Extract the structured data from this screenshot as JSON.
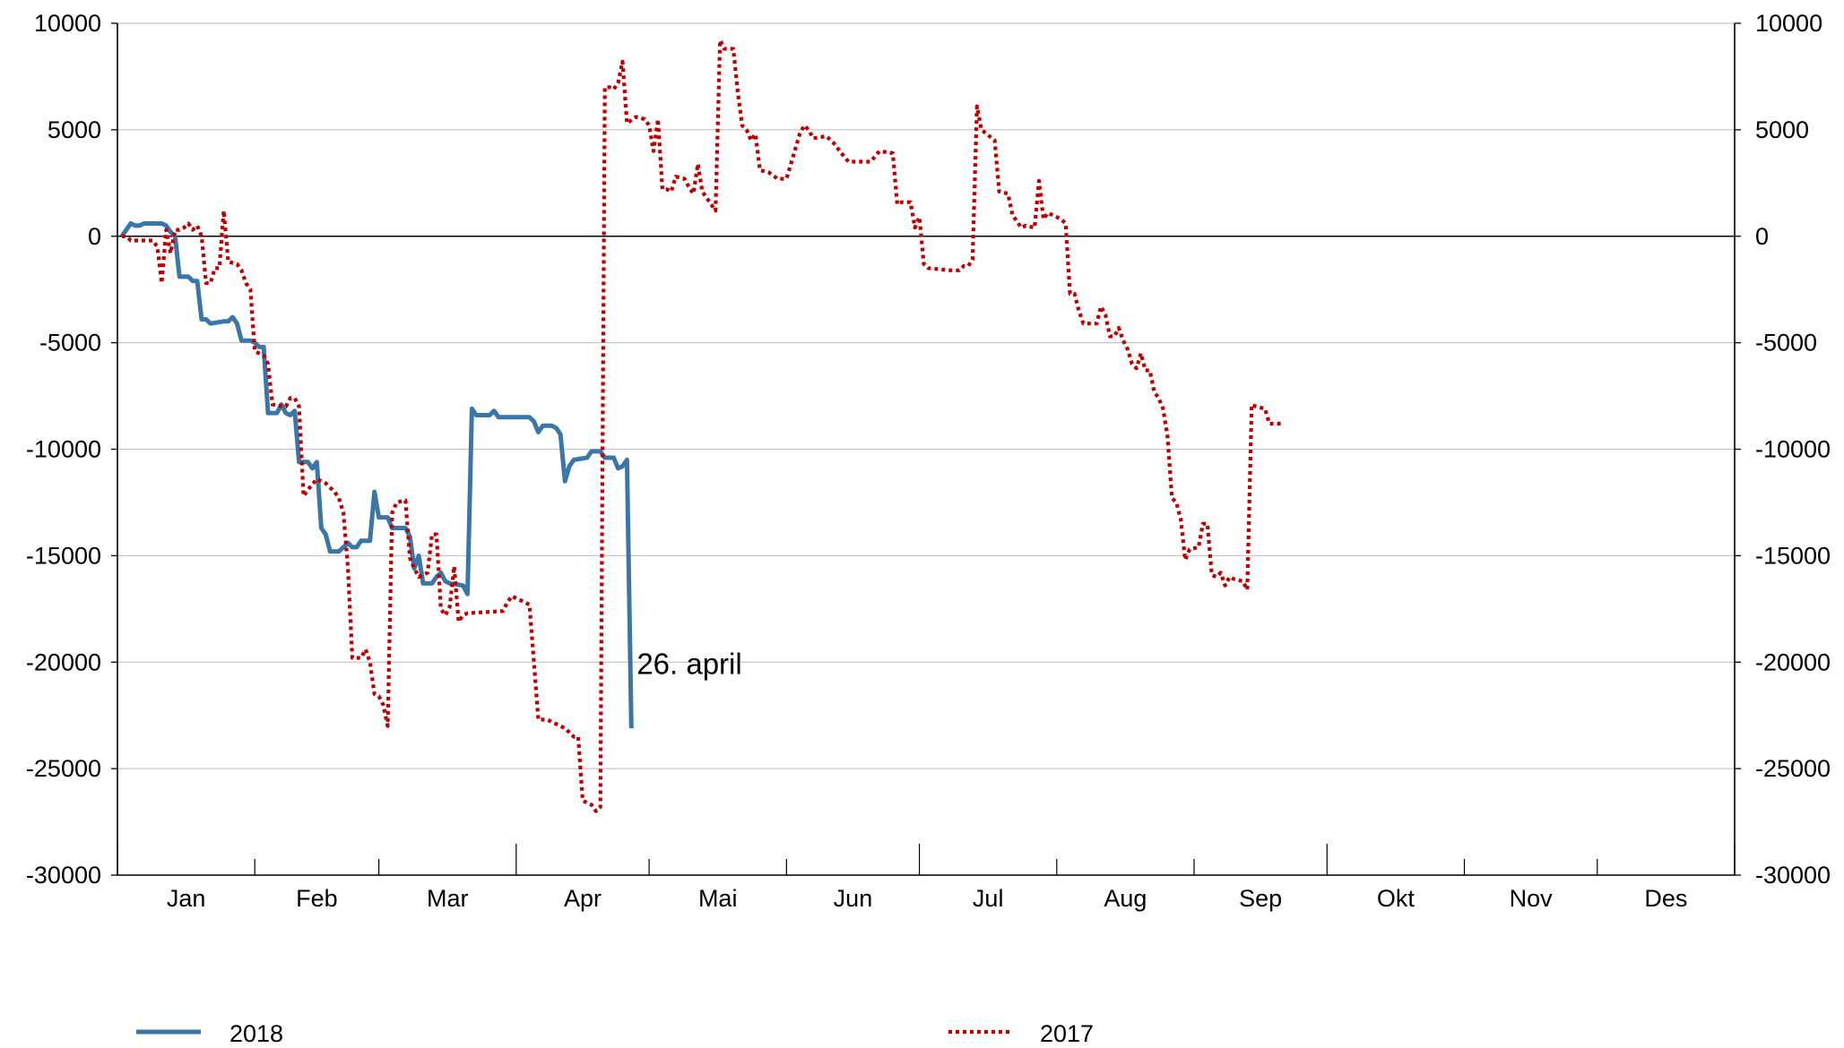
{
  "chart_data": {
    "type": "line",
    "ylim": [
      -30000,
      10000
    ],
    "yticks": [
      10000,
      5000,
      0,
      -5000,
      -10000,
      -15000,
      -20000,
      -25000,
      -30000
    ],
    "ytick_labels": [
      "10000",
      "5000",
      "0",
      "-5000",
      "-10000",
      "-15000",
      "-20000",
      "-25000",
      "-30000"
    ],
    "months": [
      "Jan",
      "Feb",
      "Mar",
      "Apr",
      "Mai",
      "Jun",
      "Jul",
      "Aug",
      "Sep",
      "Okt",
      "Nov",
      "Des"
    ],
    "x_unit": "day of year",
    "grid": true,
    "legend_position": "bottom",
    "annotation": {
      "text": "26. april",
      "series": "2018",
      "day": 116
    },
    "series": [
      {
        "name": "2018",
        "color": "#3a76a8",
        "style": "solid",
        "points": [
          [
            1,
            0
          ],
          [
            2,
            300
          ],
          [
            3,
            600
          ],
          [
            4,
            500
          ],
          [
            5,
            500
          ],
          [
            6,
            600
          ],
          [
            8,
            600
          ],
          [
            10,
            600
          ],
          [
            11,
            500
          ],
          [
            12,
            200
          ],
          [
            13,
            0
          ],
          [
            14,
            -1900
          ],
          [
            15,
            -1900
          ],
          [
            16,
            -1900
          ],
          [
            17,
            -2100
          ],
          [
            18,
            -2100
          ],
          [
            19,
            -3900
          ],
          [
            20,
            -3900
          ],
          [
            21,
            -4100
          ],
          [
            24,
            -4000
          ],
          [
            25,
            -4000
          ],
          [
            26,
            -3800
          ],
          [
            27,
            -4100
          ],
          [
            28,
            -4900
          ],
          [
            30,
            -4900
          ],
          [
            31,
            -5000
          ],
          [
            32,
            -5200
          ],
          [
            33,
            -5200
          ],
          [
            34,
            -8300
          ],
          [
            36,
            -8300
          ],
          [
            37,
            -7900
          ],
          [
            38,
            -8300
          ],
          [
            39,
            -8400
          ],
          [
            40,
            -8200
          ],
          [
            41,
            -10600
          ],
          [
            43,
            -10600
          ],
          [
            44,
            -10900
          ],
          [
            45,
            -10600
          ],
          [
            46,
            -13700
          ],
          [
            47,
            -14000
          ],
          [
            48,
            -14800
          ],
          [
            50,
            -14800
          ],
          [
            51,
            -14600
          ],
          [
            52,
            -14400
          ],
          [
            53,
            -14600
          ],
          [
            54,
            -14600
          ],
          [
            55,
            -14300
          ],
          [
            56,
            -14300
          ],
          [
            57,
            -14300
          ],
          [
            58,
            -12000
          ],
          [
            59,
            -13200
          ],
          [
            61,
            -13200
          ],
          [
            62,
            -13700
          ],
          [
            65,
            -13700
          ],
          [
            66,
            -14100
          ],
          [
            67,
            -15600
          ],
          [
            68,
            -15000
          ],
          [
            69,
            -16300
          ],
          [
            71,
            -16300
          ],
          [
            72,
            -16000
          ],
          [
            73,
            -15800
          ],
          [
            74,
            -16200
          ],
          [
            75,
            -16300
          ],
          [
            78,
            -16400
          ],
          [
            79,
            -16800
          ],
          [
            80,
            -8100
          ],
          [
            81,
            -8400
          ],
          [
            84,
            -8400
          ],
          [
            85,
            -8200
          ],
          [
            86,
            -8500
          ],
          [
            93,
            -8500
          ],
          [
            94,
            -8700
          ],
          [
            95,
            -9200
          ],
          [
            96,
            -8900
          ],
          [
            98,
            -8900
          ],
          [
            99,
            -9000
          ],
          [
            100,
            -9300
          ],
          [
            101,
            -11500
          ],
          [
            102,
            -10800
          ],
          [
            103,
            -10500
          ],
          [
            106,
            -10400
          ],
          [
            107,
            -10100
          ],
          [
            109,
            -10100
          ],
          [
            110,
            -10400
          ],
          [
            112,
            -10400
          ],
          [
            113,
            -10900
          ],
          [
            114,
            -10800
          ],
          [
            115,
            -10500
          ],
          [
            116,
            -23100
          ]
        ]
      },
      {
        "name": "2017",
        "color": "#c00000",
        "style": "dotted",
        "points": [
          [
            1,
            0
          ],
          [
            2,
            0
          ],
          [
            3,
            -200
          ],
          [
            8,
            -200
          ],
          [
            9,
            -500
          ],
          [
            10,
            -2200
          ],
          [
            11,
            300
          ],
          [
            12,
            -800
          ],
          [
            13,
            300
          ],
          [
            14,
            300
          ],
          [
            15,
            400
          ],
          [
            16,
            600
          ],
          [
            17,
            300
          ],
          [
            18,
            500
          ],
          [
            19,
            0
          ],
          [
            20,
            -2200
          ],
          [
            21,
            -2200
          ],
          [
            22,
            -1500
          ],
          [
            23,
            -1500
          ],
          [
            24,
            1200
          ],
          [
            25,
            -1200
          ],
          [
            27,
            -1300
          ],
          [
            28,
            -1600
          ],
          [
            29,
            -2200
          ],
          [
            30,
            -2500
          ],
          [
            31,
            -5400
          ],
          [
            33,
            -5600
          ],
          [
            34,
            -6000
          ],
          [
            35,
            -7900
          ],
          [
            38,
            -8000
          ],
          [
            39,
            -7600
          ],
          [
            40,
            -7600
          ],
          [
            41,
            -8000
          ],
          [
            42,
            -12200
          ],
          [
            43,
            -11900
          ],
          [
            45,
            -11400
          ],
          [
            47,
            -11600
          ],
          [
            48,
            -11800
          ],
          [
            49,
            -12000
          ],
          [
            50,
            -12300
          ],
          [
            51,
            -13000
          ],
          [
            52,
            -15500
          ],
          [
            53,
            -19800
          ],
          [
            55,
            -19800
          ],
          [
            56,
            -19400
          ],
          [
            57,
            -20000
          ],
          [
            58,
            -21500
          ],
          [
            59,
            -21600
          ],
          [
            60,
            -22000
          ],
          [
            61,
            -23000
          ],
          [
            62,
            -13000
          ],
          [
            63,
            -12500
          ],
          [
            65,
            -12400
          ],
          [
            66,
            -15100
          ],
          [
            67,
            -15600
          ],
          [
            68,
            -16000
          ],
          [
            70,
            -15800
          ],
          [
            71,
            -14000
          ],
          [
            72,
            -14000
          ],
          [
            73,
            -17500
          ],
          [
            74,
            -17800
          ],
          [
            75,
            -17400
          ],
          [
            76,
            -15500
          ],
          [
            77,
            -18100
          ],
          [
            78,
            -17800
          ],
          [
            79,
            -17700
          ],
          [
            87,
            -17600
          ],
          [
            88,
            -17200
          ],
          [
            89,
            -16900
          ],
          [
            91,
            -17100
          ],
          [
            93,
            -17300
          ],
          [
            94,
            -20000
          ],
          [
            95,
            -22700
          ],
          [
            97,
            -22700
          ],
          [
            99,
            -22900
          ],
          [
            101,
            -23100
          ],
          [
            103,
            -23500
          ],
          [
            104,
            -23500
          ],
          [
            105,
            -26500
          ],
          [
            107,
            -26700
          ],
          [
            108,
            -27000
          ],
          [
            109,
            -26800
          ],
          [
            110,
            7000
          ],
          [
            111,
            7000
          ],
          [
            112,
            6900
          ],
          [
            113,
            7200
          ],
          [
            114,
            8200
          ],
          [
            115,
            5300
          ],
          [
            117,
            5600
          ],
          [
            119,
            5500
          ],
          [
            120,
            5200
          ],
          [
            121,
            4000
          ],
          [
            122,
            5500
          ],
          [
            123,
            2200
          ],
          [
            124,
            2200
          ],
          [
            125,
            2100
          ],
          [
            126,
            2800
          ],
          [
            128,
            2700
          ],
          [
            129,
            2300
          ],
          [
            130,
            2000
          ],
          [
            131,
            3400
          ],
          [
            132,
            2100
          ],
          [
            133,
            1800
          ],
          [
            134,
            1500
          ],
          [
            135,
            1200
          ],
          [
            136,
            9200
          ],
          [
            137,
            8800
          ],
          [
            139,
            8800
          ],
          [
            140,
            6800
          ],
          [
            141,
            5200
          ],
          [
            142,
            5000
          ],
          [
            143,
            4500
          ],
          [
            144,
            4800
          ],
          [
            145,
            3100
          ],
          [
            147,
            3000
          ],
          [
            149,
            2700
          ],
          [
            151,
            2700
          ],
          [
            152,
            3400
          ],
          [
            153,
            4100
          ],
          [
            154,
            4800
          ],
          [
            155,
            5200
          ],
          [
            156,
            5000
          ],
          [
            157,
            4600
          ],
          [
            160,
            4700
          ],
          [
            162,
            4300
          ],
          [
            163,
            4000
          ],
          [
            165,
            3500
          ],
          [
            170,
            3500
          ],
          [
            172,
            4000
          ],
          [
            175,
            3900
          ],
          [
            176,
            1500
          ],
          [
            177,
            1600
          ],
          [
            179,
            1600
          ],
          [
            180,
            400
          ],
          [
            181,
            900
          ],
          [
            182,
            -1300
          ],
          [
            183,
            -1500
          ],
          [
            188,
            -1600
          ],
          [
            190,
            -1600
          ],
          [
            191,
            -1400
          ],
          [
            192,
            -1400
          ],
          [
            193,
            -1100
          ],
          [
            194,
            6100
          ],
          [
            195,
            5000
          ],
          [
            198,
            4500
          ],
          [
            199,
            2100
          ],
          [
            201,
            2000
          ],
          [
            202,
            1000
          ],
          [
            204,
            400
          ],
          [
            205,
            500
          ],
          [
            207,
            400
          ],
          [
            208,
            2600
          ],
          [
            209,
            800
          ],
          [
            210,
            1100
          ],
          [
            213,
            800
          ],
          [
            214,
            600
          ],
          [
            215,
            -2700
          ],
          [
            216,
            -2700
          ],
          [
            217,
            -3500
          ],
          [
            218,
            -4100
          ],
          [
            221,
            -4100
          ],
          [
            222,
            -3300
          ],
          [
            223,
            -3700
          ],
          [
            224,
            -4700
          ],
          [
            225,
            -4700
          ],
          [
            226,
            -4300
          ],
          [
            227,
            -4900
          ],
          [
            228,
            -5300
          ],
          [
            229,
            -6000
          ],
          [
            230,
            -6200
          ],
          [
            231,
            -5500
          ],
          [
            232,
            -6300
          ],
          [
            233,
            -6300
          ],
          [
            234,
            -7300
          ],
          [
            235,
            -7600
          ],
          [
            236,
            -8100
          ],
          [
            237,
            -9400
          ],
          [
            238,
            -12300
          ],
          [
            239,
            -12500
          ],
          [
            240,
            -13300
          ],
          [
            241,
            -15200
          ],
          [
            242,
            -14700
          ],
          [
            244,
            -14600
          ],
          [
            245,
            -13500
          ],
          [
            246,
            -13500
          ],
          [
            247,
            -15900
          ],
          [
            248,
            -16000
          ],
          [
            249,
            -15800
          ],
          [
            250,
            -16400
          ],
          [
            251,
            -16000
          ],
          [
            252,
            -16100
          ],
          [
            254,
            -16200
          ],
          [
            255,
            -16600
          ],
          [
            256,
            -7900
          ],
          [
            257,
            -8000
          ],
          [
            259,
            -8100
          ],
          [
            260,
            -8800
          ],
          [
            261,
            -8800
          ],
          [
            263,
            -8800
          ]
        ]
      }
    ]
  }
}
